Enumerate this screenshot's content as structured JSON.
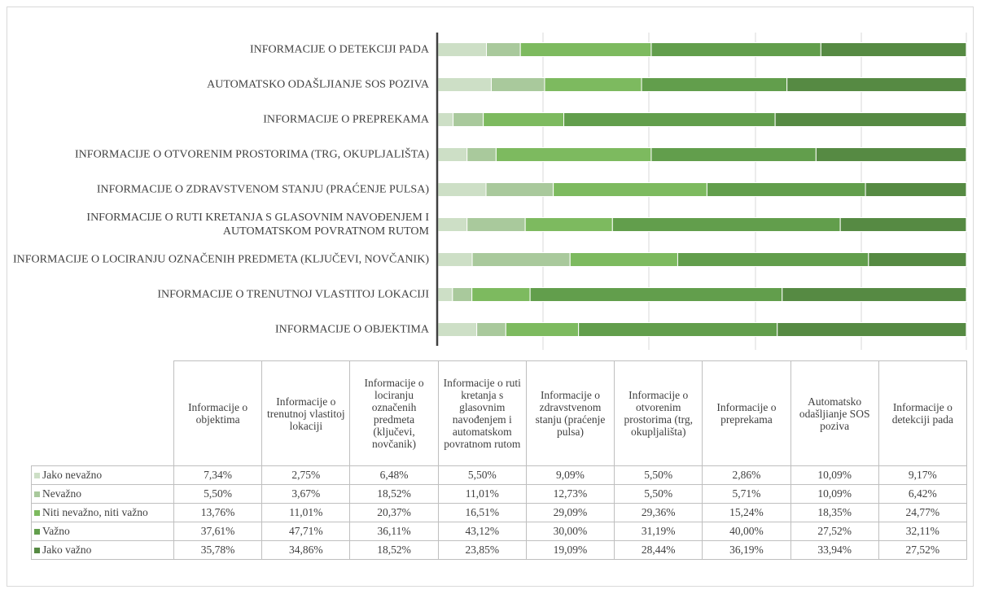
{
  "chart_data": {
    "type": "stacked_bar_horizontal",
    "categories": [
      "Informacije o objektima",
      "Informacije o trenutnoj vlastitoj lokaciji",
      "Informacije o lociranju označenih predmeta (ključevi, novčanik)",
      "Informacije o ruti kretanja s glasovnim navođenjem i automatskom povratnom rutom",
      "Informacije o zdravstvenom stanju (praćenje pulsa)",
      "Informacije o otvorenim prostorima (trg, okupljališta)",
      "Informacije o preprekama",
      "Automatsko odašljianje SOS poziva",
      "Informacije o detekciji pada"
    ],
    "xlim": [
      0,
      100
    ],
    "series": [
      {
        "name": "Jako nevažno",
        "color": "#cddfc6",
        "values": [
          7.34,
          2.75,
          6.48,
          5.5,
          9.09,
          5.5,
          2.86,
          10.09,
          9.17
        ],
        "value_labels": [
          "7,34%",
          "2,75%",
          "6,48%",
          "5,50%",
          "9,09%",
          "5,50%",
          "2,86%",
          "10,09%",
          "9,17%"
        ]
      },
      {
        "name": "Nevažno",
        "color": "#a9c99c",
        "values": [
          5.5,
          3.67,
          18.52,
          11.01,
          12.73,
          5.5,
          5.71,
          10.09,
          6.42
        ],
        "value_labels": [
          "5,50%",
          "3,67%",
          "18,52%",
          "11,01%",
          "12,73%",
          "5,50%",
          "5,71%",
          "10,09%",
          "6,42%"
        ]
      },
      {
        "name": "Niti nevažno, niti važno",
        "color": "#7dba5f",
        "values": [
          13.76,
          11.01,
          20.37,
          16.51,
          29.09,
          29.36,
          15.24,
          18.35,
          24.77
        ],
        "value_labels": [
          "13,76%",
          "11,01%",
          "20,37%",
          "16,51%",
          "29,09%",
          "29,36%",
          "15,24%",
          "18,35%",
          "24,77%"
        ]
      },
      {
        "name": "Važno",
        "color": "#629e4c",
        "values": [
          37.61,
          47.71,
          36.11,
          43.12,
          30.0,
          31.19,
          40.0,
          27.52,
          32.11
        ],
        "value_labels": [
          "37,61%",
          "47,71%",
          "36,11%",
          "43,12%",
          "30,00%",
          "31,19%",
          "40,00%",
          "27,52%",
          "32,11%"
        ]
      },
      {
        "name": "Jako važno",
        "color": "#568a43",
        "values": [
          35.78,
          34.86,
          18.52,
          23.85,
          19.09,
          28.44,
          36.19,
          33.94,
          27.52
        ],
        "value_labels": [
          "35,78%",
          "34,86%",
          "18,52%",
          "23,85%",
          "19,09%",
          "28,44%",
          "36,19%",
          "33,94%",
          "27,52%"
        ]
      }
    ]
  }
}
